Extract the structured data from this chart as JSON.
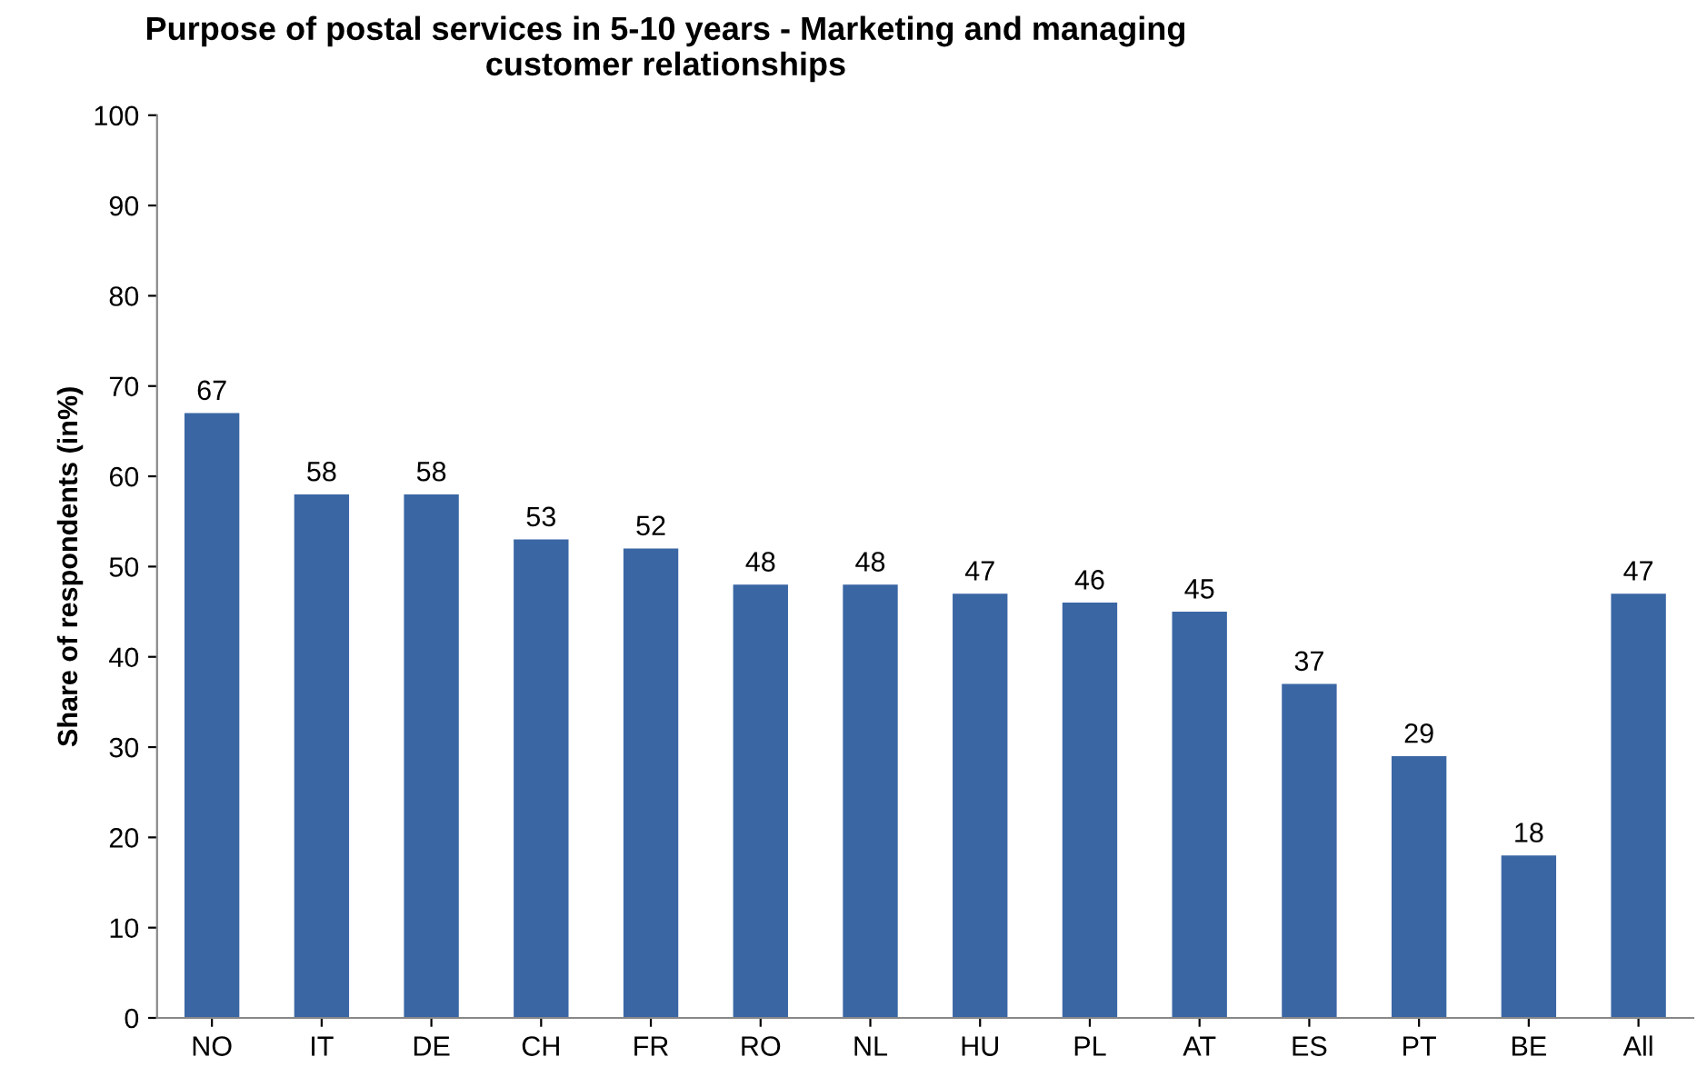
{
  "chart_data": {
    "type": "bar",
    "title": "Purpose of postal services in 5-10 years - Marketing and managing\ncustomer relationships",
    "ylabel": "Share of respondents (in%)",
    "categories": [
      "NO",
      "IT",
      "DE",
      "CH",
      "FR",
      "RO",
      "NL",
      "HU",
      "PL",
      "AT",
      "ES",
      "PT",
      "BE",
      "All"
    ],
    "values": [
      67,
      58,
      58,
      53,
      52,
      48,
      48,
      47,
      46,
      45,
      37,
      29,
      18,
      47
    ],
    "color": "#3a66a4",
    "ylim": [
      0,
      100
    ],
    "yticks": [
      0,
      10,
      20,
      30,
      40,
      50,
      60,
      70,
      80,
      90,
      100
    ],
    "grid": false,
    "data_labels": true
  }
}
